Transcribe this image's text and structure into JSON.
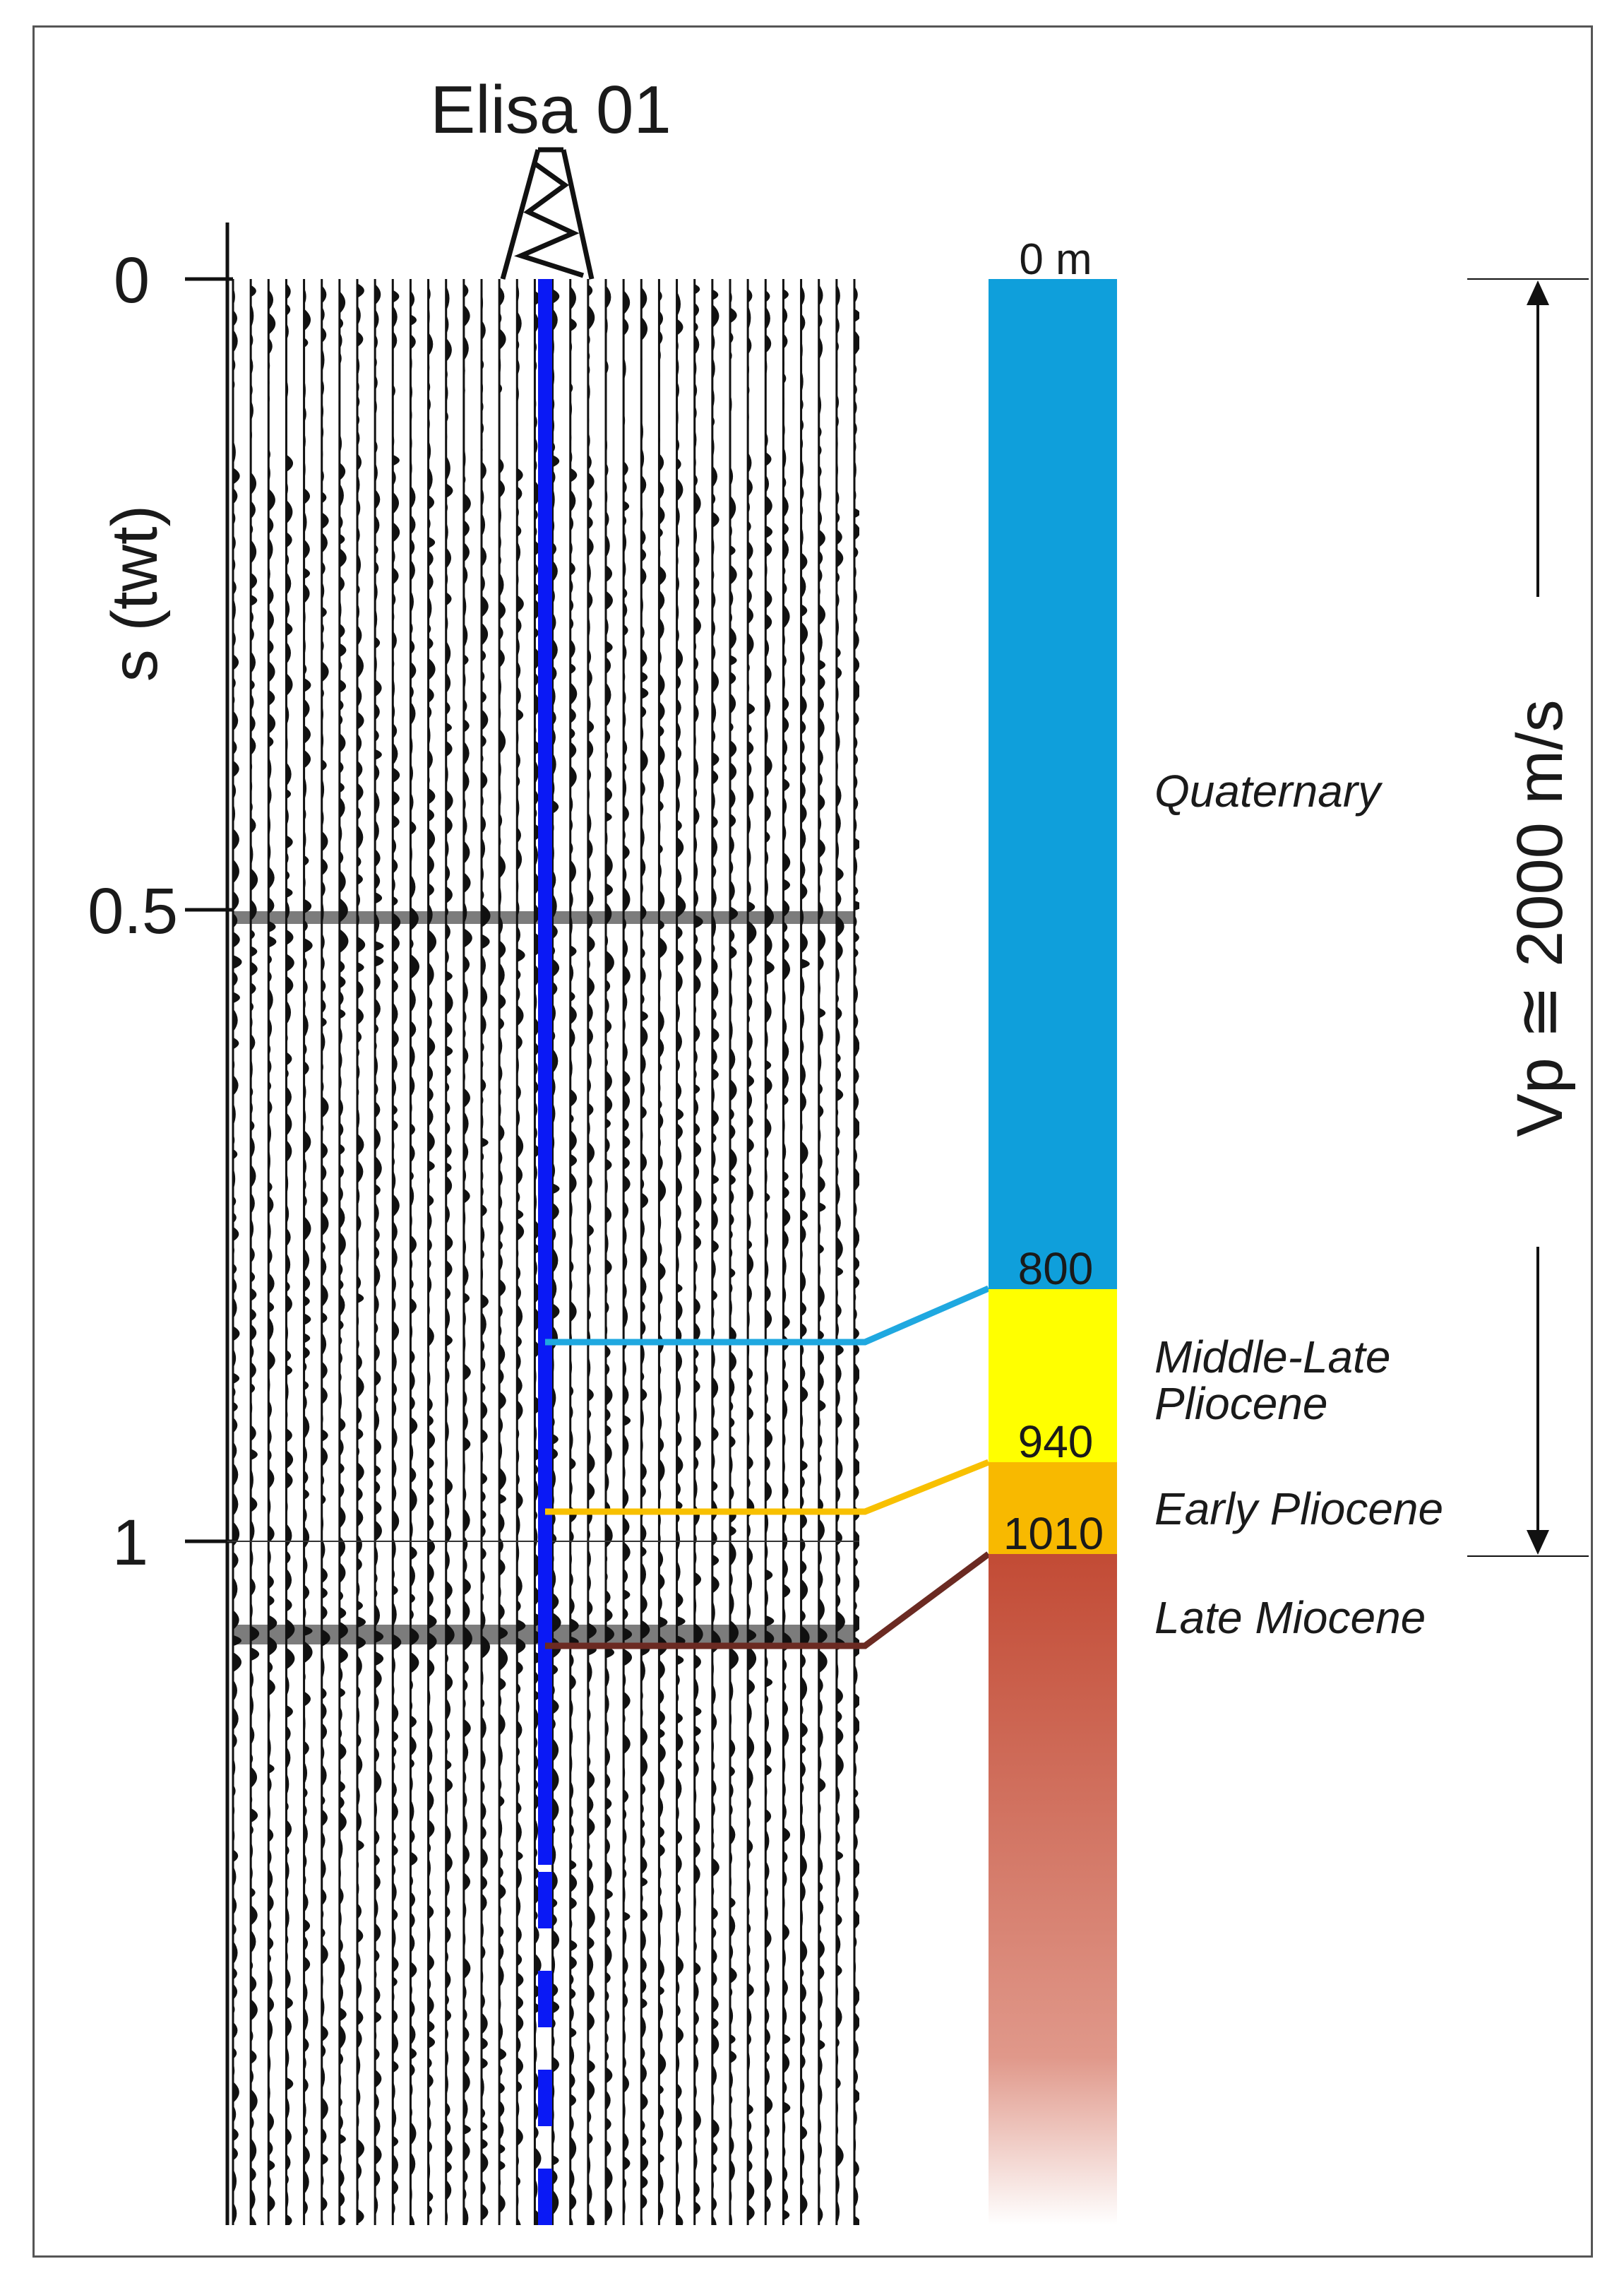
{
  "well": {
    "name": "Elisa 01"
  },
  "time_axis": {
    "label": "s (twt)",
    "ticks": [
      "0",
      "0.5",
      "1"
    ]
  },
  "depth_column": {
    "top_label": "0 m",
    "depth_labels": [
      "800",
      "940",
      "1010"
    ],
    "units": [
      {
        "name": "Quaternary",
        "top_m": 0,
        "base_m": 800,
        "color": "#0f9fdb"
      },
      {
        "name": "Middle-Late\nPliocene",
        "line1": "Middle-Late",
        "line2": "Pliocene",
        "top_m": 800,
        "base_m": 940,
        "color": "#ffff00"
      },
      {
        "name": "Early Pliocene",
        "top_m": 940,
        "base_m": 1010,
        "color": "#f8b900"
      },
      {
        "name": "Late Miocene",
        "top_m": 1010,
        "base_m": null,
        "color": "#c24b35"
      }
    ],
    "tie_line_colors": [
      "#1fa8e0",
      "#f8c000",
      "#6b2a22"
    ]
  },
  "velocity": {
    "label": "Vp ≅ 2000 m/s"
  },
  "colors": {
    "well_line": "#0a19f5",
    "seismic": "#111111",
    "frame": "#555555"
  }
}
